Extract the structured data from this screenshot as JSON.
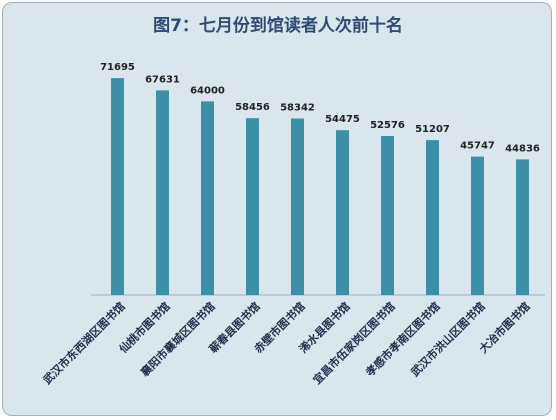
{
  "chart_data": {
    "type": "bar",
    "title": "图7：七月份到馆读者人次前十名",
    "categories": [
      "武汉市东西湖区图书馆",
      "仙桃市图书馆",
      "襄阳市襄城区图书馆",
      "蕲春县图书馆",
      "赤壁市图书馆",
      "浠水县图书馆",
      "宜昌市伍家岗区图书馆",
      "孝感市孝南区图书馆",
      "武汉市洪山区图书馆",
      "大冶市图书馆"
    ],
    "values": [
      71695,
      67631,
      64000,
      58456,
      58342,
      54475,
      52576,
      51207,
      45747,
      44836
    ],
    "ylim": [
      0,
      80000
    ],
    "grid": false,
    "legend": "none",
    "colors": {
      "bar": "#3d8fa6",
      "background": "#d9e6ee",
      "title": "#2f4a73"
    }
  }
}
